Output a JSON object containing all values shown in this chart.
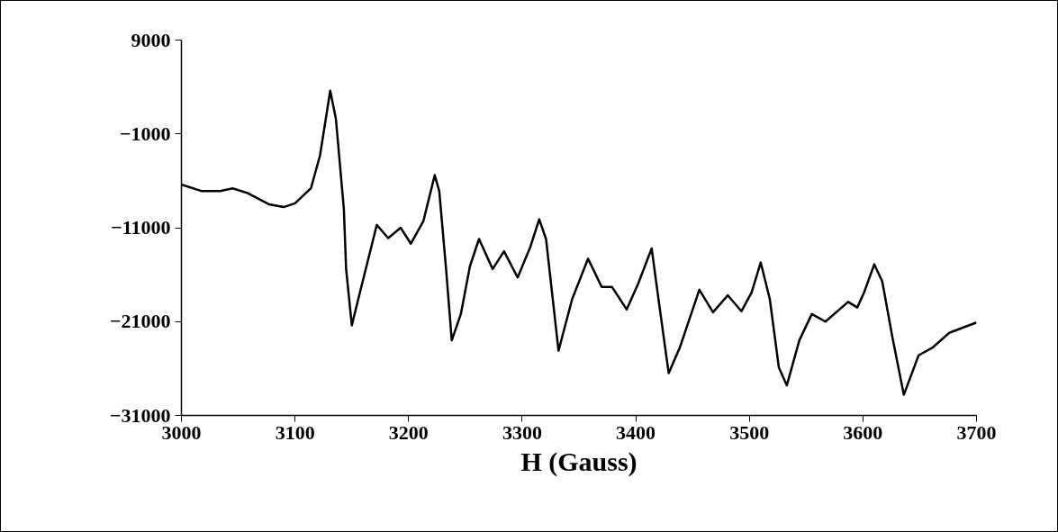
{
  "chart_data": {
    "type": "line",
    "xlabel": "H (Gauss)",
    "xlim": [
      3000,
      3700
    ],
    "ylim": [
      -31000,
      9000
    ],
    "xticks": [
      3000,
      3100,
      3200,
      3300,
      3400,
      3500,
      3600,
      3700
    ],
    "yticks": [
      -31000,
      -21000,
      -11000,
      -1000,
      9000
    ],
    "grid": false,
    "marker": "none",
    "line_style": "solid",
    "series": [
      {
        "color": "#000000",
        "x": [
          3000,
          3018,
          3034,
          3045,
          3058,
          3077,
          3090,
          3100,
          3114,
          3122,
          3131,
          3136,
          3143,
          3145,
          3150,
          3159,
          3172,
          3182,
          3193,
          3202,
          3213,
          3223,
          3227,
          3233,
          3238,
          3246,
          3254,
          3262,
          3274,
          3284,
          3296,
          3307,
          3315,
          3321,
          3332,
          3344,
          3358,
          3370,
          3379,
          3392,
          3402,
          3414,
          3420,
          3429,
          3439,
          3456,
          3468,
          3481,
          3493,
          3502,
          3510,
          3518,
          3526,
          3533,
          3544,
          3555,
          3567,
          3587,
          3595,
          3601,
          3610,
          3617,
          3626,
          3636,
          3649,
          3661,
          3676,
          3700
        ],
        "values": [
          -6400,
          -7100,
          -7100,
          -6800,
          -7300,
          -8500,
          -8800,
          -8400,
          -6800,
          -3300,
          3600,
          600,
          -9000,
          -15400,
          -21400,
          -17000,
          -10700,
          -12100,
          -11000,
          -12700,
          -10300,
          -5400,
          -7100,
          -15400,
          -23000,
          -20200,
          -15100,
          -12200,
          -15400,
          -13500,
          -16300,
          -13100,
          -10100,
          -12200,
          -24100,
          -18600,
          -14300,
          -17300,
          -17300,
          -19700,
          -17000,
          -13200,
          -18600,
          -26500,
          -23700,
          -17600,
          -20000,
          -18200,
          -19900,
          -17900,
          -14700,
          -18600,
          -25900,
          -27800,
          -23000,
          -20200,
          -21000,
          -18900,
          -19500,
          -17900,
          -14900,
          -16700,
          -22700,
          -28800,
          -24600,
          -23800,
          -22200,
          -21100
        ]
      }
    ]
  }
}
